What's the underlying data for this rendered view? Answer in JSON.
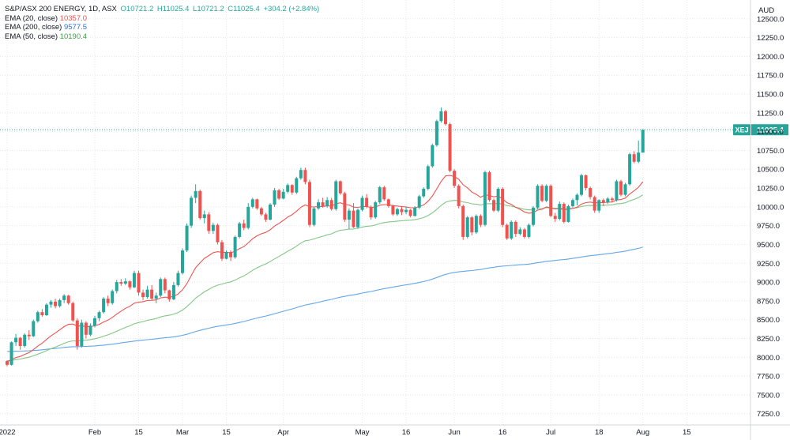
{
  "header": {
    "symbol": "S&P/ASX 200 ENERGY, 1D, ASX",
    "open": "O10721.2",
    "high": "H11025.4",
    "low": "L10721.2",
    "close": "C11025.4",
    "change": "+304.2 (+2.84%)"
  },
  "legend": [
    {
      "label": "EMA (20, close)",
      "value": "10357.0",
      "color": "#ef5350"
    },
    {
      "label": "EMA (200, close)",
      "value": "9577.5",
      "color": "#4a90d9"
    },
    {
      "label": "EMA (50, close)",
      "value": "10190.4",
      "color": "#43a047"
    }
  ],
  "colors": {
    "up": "#26a69a",
    "down": "#ef5350",
    "ema20": "#ef5350",
    "ema200": "#64a6e8",
    "ema50": "#81c784",
    "grid": "#e6e8ee",
    "text": "#131722"
  },
  "chart_data": {
    "type": "candlestick",
    "currency": "AUD",
    "ylim": [
      7100,
      12750
    ],
    "yticks": [
      "7250.0",
      "7500.0",
      "7750.0",
      "8000.0",
      "8250.0",
      "8500.0",
      "8750.0",
      "9000.0",
      "9250.0",
      "9500.0",
      "9750.0",
      "10000.0",
      "10250.0",
      "10500.0",
      "10750.0",
      "11000.0",
      "11250.0",
      "11500.0",
      "11750.0",
      "12000.0",
      "12250.0",
      "12500.0"
    ],
    "xticks": [
      {
        "label": "2022",
        "index": 0
      },
      {
        "label": "Feb",
        "index": 20
      },
      {
        "label": "15",
        "index": 30
      },
      {
        "label": "Mar",
        "index": 40
      },
      {
        "label": "15",
        "index": 50
      },
      {
        "label": "Apr",
        "index": 63
      },
      {
        "label": "May",
        "index": 81
      },
      {
        "label": "16",
        "index": 91
      },
      {
        "label": "Jun",
        "index": 102
      },
      {
        "label": "16",
        "index": 113
      },
      {
        "label": "Jul",
        "index": 124
      },
      {
        "label": "18",
        "index": 135
      },
      {
        "label": "Aug",
        "index": 145
      },
      {
        "label": "15",
        "index": 155
      }
    ],
    "last_price_label": "11025.4",
    "last_symbol_label": "XEJ",
    "candles": [
      [
        7950,
        7960,
        7880,
        7900
      ],
      [
        7900,
        8210,
        7890,
        8200
      ],
      [
        8200,
        8310,
        8150,
        8260
      ],
      [
        8260,
        8270,
        8100,
        8150
      ],
      [
        8150,
        8320,
        8130,
        8300
      ],
      [
        8300,
        8360,
        8230,
        8280
      ],
      [
        8280,
        8500,
        8270,
        8480
      ],
      [
        8480,
        8620,
        8460,
        8600
      ],
      [
        8600,
        8640,
        8540,
        8560
      ],
      [
        8560,
        8720,
        8550,
        8700
      ],
      [
        8700,
        8760,
        8660,
        8740
      ],
      [
        8740,
        8780,
        8650,
        8680
      ],
      [
        8680,
        8780,
        8660,
        8760
      ],
      [
        8760,
        8840,
        8720,
        8820
      ],
      [
        8820,
        8830,
        8700,
        8720
      ],
      [
        8720,
        8740,
        8470,
        8490
      ],
      [
        8490,
        8520,
        8100,
        8150
      ],
      [
        8150,
        8500,
        8130,
        8460
      ],
      [
        8460,
        8480,
        8250,
        8300
      ],
      [
        8300,
        8450,
        8280,
        8420
      ],
      [
        8420,
        8550,
        8400,
        8520
      ],
      [
        8520,
        8620,
        8480,
        8600
      ],
      [
        8600,
        8800,
        8580,
        8780
      ],
      [
        8780,
        8820,
        8680,
        8720
      ],
      [
        8720,
        8900,
        8700,
        8880
      ],
      [
        8880,
        9030,
        8850,
        9000
      ],
      [
        9000,
        9040,
        8950,
        8980
      ],
      [
        8980,
        9050,
        8960,
        9010
      ],
      [
        9010,
        9020,
        8900,
        8930
      ],
      [
        8930,
        9150,
        8920,
        9120
      ],
      [
        9120,
        9150,
        8820,
        8860
      ],
      [
        8860,
        8900,
        8760,
        8800
      ],
      [
        8800,
        8950,
        8780,
        8900
      ],
      [
        8900,
        8960,
        8760,
        8780
      ],
      [
        8780,
        8860,
        8720,
        8820
      ],
      [
        8820,
        9060,
        8800,
        9040
      ],
      [
        9040,
        9060,
        8850,
        8890
      ],
      [
        8890,
        8900,
        8740,
        8770
      ],
      [
        8770,
        9000,
        8760,
        8960
      ],
      [
        8960,
        9150,
        8940,
        9120
      ],
      [
        9120,
        9450,
        9100,
        9420
      ],
      [
        9420,
        9780,
        9400,
        9750
      ],
      [
        9750,
        10150,
        9720,
        10120
      ],
      [
        10120,
        10300,
        10050,
        10210
      ],
      [
        10210,
        10230,
        9830,
        9850
      ],
      [
        9850,
        9950,
        9780,
        9900
      ],
      [
        9900,
        9930,
        9640,
        9680
      ],
      [
        9680,
        9790,
        9640,
        9760
      ],
      [
        9760,
        9780,
        9500,
        9530
      ],
      [
        9530,
        9560,
        9280,
        9310
      ],
      [
        9310,
        9420,
        9300,
        9400
      ],
      [
        9400,
        9420,
        9280,
        9330
      ],
      [
        9330,
        9620,
        9310,
        9600
      ],
      [
        9600,
        9800,
        9580,
        9780
      ],
      [
        9780,
        9830,
        9690,
        9720
      ],
      [
        9720,
        10050,
        9700,
        10000
      ],
      [
        10000,
        10120,
        9980,
        10100
      ],
      [
        10100,
        10110,
        9960,
        9980
      ],
      [
        9980,
        10000,
        9880,
        9900
      ],
      [
        9900,
        9920,
        9800,
        9830
      ],
      [
        9830,
        10050,
        9820,
        10030
      ],
      [
        10030,
        10250,
        10000,
        10220
      ],
      [
        10220,
        10240,
        10090,
        10110
      ],
      [
        10110,
        10240,
        10100,
        10200
      ],
      [
        10200,
        10310,
        10180,
        10290
      ],
      [
        10290,
        10300,
        10160,
        10190
      ],
      [
        10190,
        10400,
        10170,
        10380
      ],
      [
        10380,
        10520,
        10360,
        10490
      ],
      [
        10490,
        10520,
        10300,
        10330
      ],
      [
        10330,
        10360,
        9730,
        9760
      ],
      [
        9760,
        10000,
        9740,
        9980
      ],
      [
        9980,
        10100,
        9960,
        10060
      ],
      [
        10060,
        10120,
        9990,
        10010
      ],
      [
        10010,
        10130,
        9990,
        10090
      ],
      [
        10090,
        10120,
        9950,
        9970
      ],
      [
        9970,
        10360,
        9950,
        10340
      ],
      [
        10340,
        10350,
        10160,
        10180
      ],
      [
        10180,
        10200,
        9800,
        9830
      ],
      [
        9830,
        9980,
        9700,
        9950
      ],
      [
        9950,
        10050,
        9720,
        9730
      ],
      [
        9730,
        9980,
        9710,
        9960
      ],
      [
        9960,
        10150,
        9940,
        10120
      ],
      [
        10120,
        10170,
        9980,
        10000
      ],
      [
        10000,
        10020,
        9830,
        9860
      ],
      [
        9860,
        10080,
        9840,
        10060
      ],
      [
        10060,
        10280,
        10040,
        10260
      ],
      [
        10260,
        10280,
        10080,
        10100
      ],
      [
        10100,
        10110,
        9990,
        10010
      ],
      [
        10010,
        10030,
        9880,
        9900
      ],
      [
        9900,
        9990,
        9880,
        9970
      ],
      [
        9970,
        10010,
        9890,
        9930
      ],
      [
        9930,
        10000,
        9900,
        9960
      ],
      [
        9960,
        9970,
        9860,
        9880
      ],
      [
        9880,
        10010,
        9870,
        9990
      ],
      [
        9990,
        10160,
        9970,
        10140
      ],
      [
        10140,
        10260,
        10120,
        10240
      ],
      [
        10240,
        10560,
        10220,
        10540
      ],
      [
        10540,
        10840,
        10520,
        10820
      ],
      [
        10820,
        11160,
        10800,
        11140
      ],
      [
        11140,
        11320,
        11120,
        11270
      ],
      [
        11270,
        11290,
        11080,
        11100
      ],
      [
        11100,
        11120,
        10460,
        10480
      ],
      [
        10480,
        10500,
        10250,
        10280
      ],
      [
        10280,
        10300,
        9980,
        10010
      ],
      [
        10010,
        10030,
        9560,
        9600
      ],
      [
        9600,
        9880,
        9580,
        9860
      ],
      [
        9860,
        9880,
        9620,
        9660
      ],
      [
        9660,
        9900,
        9640,
        9880
      ],
      [
        9880,
        9900,
        9730,
        9760
      ],
      [
        9760,
        10480,
        9740,
        10460
      ],
      [
        10460,
        10480,
        10070,
        10090
      ],
      [
        10090,
        10110,
        9930,
        9950
      ],
      [
        9950,
        10260,
        9930,
        10240
      ],
      [
        10240,
        10260,
        9730,
        9760
      ],
      [
        9760,
        9780,
        9560,
        9580
      ],
      [
        9580,
        9820,
        9560,
        9800
      ],
      [
        9800,
        9820,
        9600,
        9640
      ],
      [
        9640,
        9730,
        9620,
        9700
      ],
      [
        9700,
        9720,
        9580,
        9600
      ],
      [
        9600,
        9780,
        9580,
        9760
      ],
      [
        9760,
        10010,
        9740,
        9990
      ],
      [
        9990,
        10300,
        9970,
        10280
      ],
      [
        10280,
        10300,
        10060,
        10080
      ],
      [
        10080,
        10300,
        10060,
        10280
      ],
      [
        10280,
        10300,
        9860,
        9880
      ],
      [
        9880,
        9920,
        9800,
        9840
      ],
      [
        9840,
        10070,
        9820,
        10040
      ],
      [
        10040,
        10060,
        9780,
        9800
      ],
      [
        9800,
        10030,
        9790,
        10010
      ],
      [
        10010,
        10110,
        9990,
        10090
      ],
      [
        10090,
        10180,
        10020,
        10160
      ],
      [
        10160,
        10440,
        10140,
        10420
      ],
      [
        10420,
        10430,
        10220,
        10250
      ],
      [
        10250,
        10270,
        10100,
        10130
      ],
      [
        10130,
        10150,
        9920,
        9950
      ],
      [
        9950,
        10100,
        9920,
        10090
      ],
      [
        10090,
        10110,
        10010,
        10060
      ],
      [
        10060,
        10130,
        10040,
        10110
      ],
      [
        10110,
        10130,
        10060,
        10090
      ],
      [
        10090,
        10360,
        10070,
        10340
      ],
      [
        10340,
        10360,
        10140,
        10160
      ],
      [
        10160,
        10320,
        10140,
        10300
      ],
      [
        10300,
        10720,
        10280,
        10700
      ],
      [
        10700,
        10740,
        10580,
        10600
      ],
      [
        10600,
        10880,
        10580,
        10721.2
      ],
      [
        10721.2,
        11025.4,
        10721.2,
        11025.4
      ]
    ],
    "ema20_endpoints": {
      "last": 10357.0
    },
    "ema50_endpoints": {
      "last": 10190.4
    },
    "ema200_endpoints": {
      "last": 9577.5
    }
  }
}
